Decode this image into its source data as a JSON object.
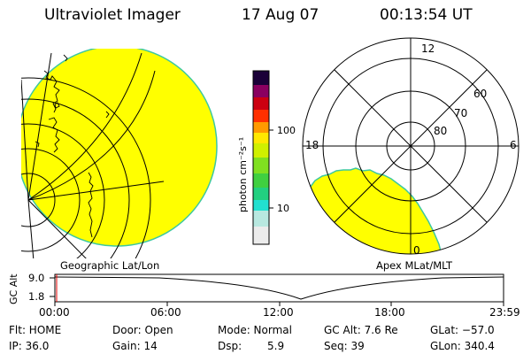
{
  "header": {
    "title": "Ultraviolet Imager",
    "date": "17 Aug 07",
    "time": "00:13:54 UT"
  },
  "left_panel": {
    "caption": "Geographic Lat/Lon",
    "fill_color": "#ffff00"
  },
  "right_panel": {
    "caption": "Apex MLat/MLT",
    "mlt_labels": {
      "top": "12",
      "left": "18",
      "right": "6",
      "bottom": "0"
    },
    "lat_labels": [
      "60",
      "70",
      "80"
    ]
  },
  "colorbar": {
    "unit_label": "photon cm⁻²s⁻¹",
    "tick_labels": [
      "100",
      "10"
    ],
    "tick_values": [
      100,
      10
    ],
    "scale": "log",
    "colors": [
      "#dcdcdc",
      "#22e3d0",
      "#22d060",
      "#78e020",
      "#d0f000",
      "#ffff00",
      "#ffe000",
      "#ff9000",
      "#ff3000",
      "#d00000",
      "#a00050",
      "#200040"
    ]
  },
  "alt_plot": {
    "y_label": "GC Alt",
    "y_ticks": [
      "9.0",
      "1.8"
    ],
    "x_ticks": [
      "00:00",
      "06:00",
      "12:00",
      "18:00",
      "23:59"
    ],
    "marker_time": "00:13:54",
    "minimum_time": "13:30"
  },
  "status": {
    "flt": "Flt: HOME",
    "ip": "IP: 36.0",
    "door": "Door: Open",
    "gain": "Gain: 14",
    "mode": "Mode: Normal",
    "dsp": "Dsp:",
    "dsp_value": "5.9",
    "gc_alt": "GC Alt: 7.6 Re",
    "seq": "Seq: 39",
    "glat": "GLat: −57.0",
    "glon": "GLon: 340.4"
  }
}
